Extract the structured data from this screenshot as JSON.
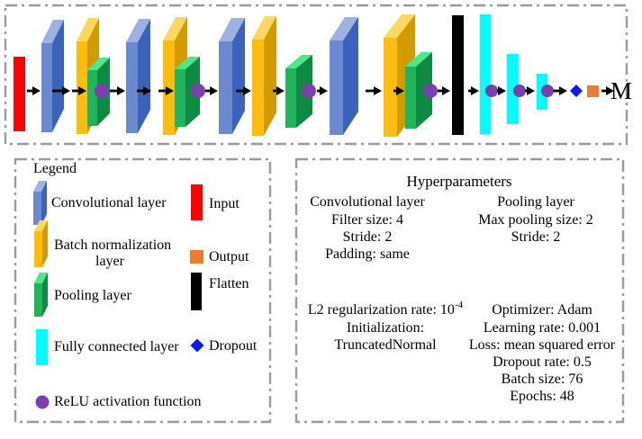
{
  "colors": {
    "convolutional": {
      "front": "#6b8ace",
      "side": "#3c63bb",
      "top": "#9db1e3"
    },
    "batch_normalization": {
      "front": "#fcbc10",
      "side": "#d29c00",
      "top": "#fed763"
    },
    "pooling": {
      "front": "#21b45c",
      "side": "#0f8a42",
      "top": "#4ce98a"
    },
    "input": "#fd0202",
    "output": "#ec7d2f",
    "flatten": "#000000",
    "fully_connected": "#00fdff",
    "relu": "#7b3fae",
    "dropout": "#0a17ee",
    "arrow": "#000000",
    "border": "#9b9b9b"
  },
  "network": {
    "output_label": "M",
    "sequence": [
      "Input",
      "Convolutional layer",
      "Batch normalization layer",
      "Pooling layer",
      "ReLU",
      "Convolutional layer",
      "Batch normalization layer",
      "Pooling layer",
      "ReLU",
      "Convolutional layer",
      "Batch normalization layer",
      "Pooling layer",
      "ReLU",
      "Convolutional layer",
      "Batch normalization layer",
      "Pooling layer",
      "ReLU",
      "Flatten",
      "Fully connected layer",
      "ReLU",
      "Fully connected layer",
      "ReLU",
      "Fully connected layer",
      "ReLU",
      "Dropout",
      "Output"
    ]
  },
  "legend": {
    "title": "Legend",
    "items": [
      {
        "icon": "convolutional-slab",
        "label": "Convolutional layer"
      },
      {
        "icon": "batch-normalization-slab",
        "label_line1": "Batch normalization",
        "label_line2": "layer"
      },
      {
        "icon": "pooling-slab",
        "label": "Pooling layer"
      },
      {
        "icon": "fully-connected-bar",
        "label": "Fully connected layer"
      },
      {
        "icon": "relu-circle",
        "label": "ReLU activation function"
      },
      {
        "icon": "input-bar",
        "label": "Input"
      },
      {
        "icon": "output-square",
        "label": "Output"
      },
      {
        "icon": "flatten-bar",
        "label": "Flatten"
      },
      {
        "icon": "dropout-diamond",
        "label": "Dropout"
      }
    ]
  },
  "hyperparameters": {
    "title": "Hyperparameters",
    "conv_heading": "Convolutional layer",
    "conv_lines": [
      "Filter size: 4",
      "Stride: 2",
      "Padding: same"
    ],
    "pool_heading": "Pooling layer",
    "pool_lines": [
      "Max pooling size: 2",
      "Stride: 2"
    ],
    "l2_base": "L2 regularization rate: 10",
    "l2_exponent": "-4",
    "init_lines": [
      "Initialization:",
      "TruncatedNormal"
    ],
    "train_lines": [
      "Optimizer: Adam",
      "Learning rate: 0.001",
      "Loss: mean squared error",
      "Dropout rate: 0.5",
      "Batch size: 76",
      "Epochs: 48"
    ]
  }
}
